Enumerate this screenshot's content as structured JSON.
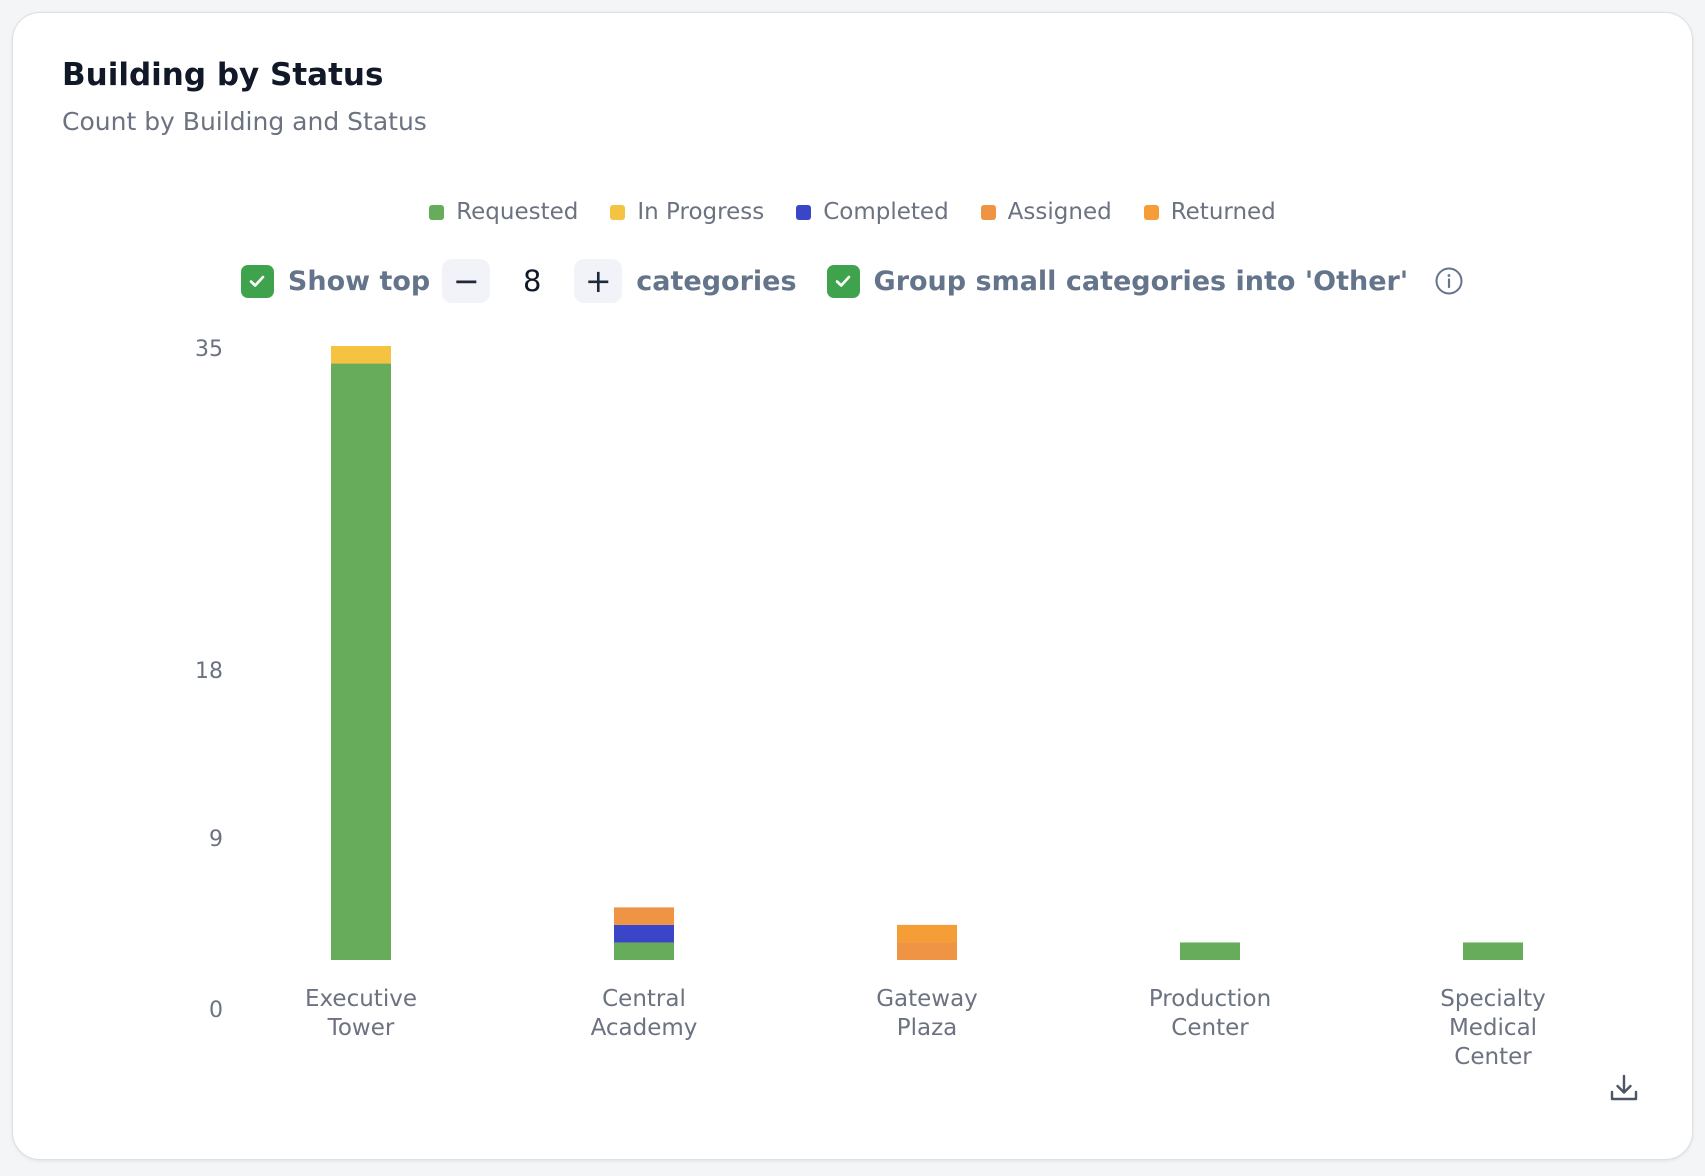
{
  "card": {
    "title": "Building by Status",
    "subtitle": "Count by Building and Status"
  },
  "legend": [
    {
      "label": "Requested",
      "color": "#67ac5b"
    },
    {
      "label": "In Progress",
      "color": "#f5c342"
    },
    {
      "label": "Completed",
      "color": "#3b45c7"
    },
    {
      "label": "Assigned",
      "color": "#ee9444"
    },
    {
      "label": "Returned",
      "color": "#f59e38"
    }
  ],
  "controls": {
    "show_top_checked": true,
    "show_top_label": "Show top",
    "minus_symbol": "−",
    "top_n": "8",
    "plus_symbol": "+",
    "categories_label": "categories",
    "group_checked": true,
    "group_label": "Group small categories into 'Other'",
    "info_icon": "info-circle-icon",
    "download_icon": "download-icon"
  },
  "chart_data": {
    "type": "bar",
    "stacked": true,
    "categories": [
      "Executive Tower",
      "Central Academy",
      "Gateway Plaza",
      "Production Center",
      "Specialty Medical Center"
    ],
    "category_lines": [
      [
        "Executive",
        "Tower"
      ],
      [
        "Central",
        "Academy"
      ],
      [
        "Gateway",
        "Plaza"
      ],
      [
        "Production",
        "Center"
      ],
      [
        "Specialty",
        "Medical",
        "Center"
      ]
    ],
    "series": [
      {
        "name": "Requested",
        "color": "#67ac5b",
        "values": [
          34,
          1,
          0,
          1,
          1
        ]
      },
      {
        "name": "In Progress",
        "color": "#f5c342",
        "values": [
          1,
          0,
          0,
          0,
          0
        ]
      },
      {
        "name": "Completed",
        "color": "#3b45c7",
        "values": [
          0,
          1,
          0,
          0,
          0
        ]
      },
      {
        "name": "Assigned",
        "color": "#ee9444",
        "values": [
          0,
          1,
          1,
          0,
          0
        ]
      },
      {
        "name": "Returned",
        "color": "#f59e38",
        "values": [
          0,
          0,
          1,
          0,
          0
        ]
      }
    ],
    "y_ticks": [
      "35",
      "18",
      "9",
      "0"
    ],
    "ylim": [
      0,
      35
    ],
    "grid": false,
    "legend_position": "top-center"
  }
}
